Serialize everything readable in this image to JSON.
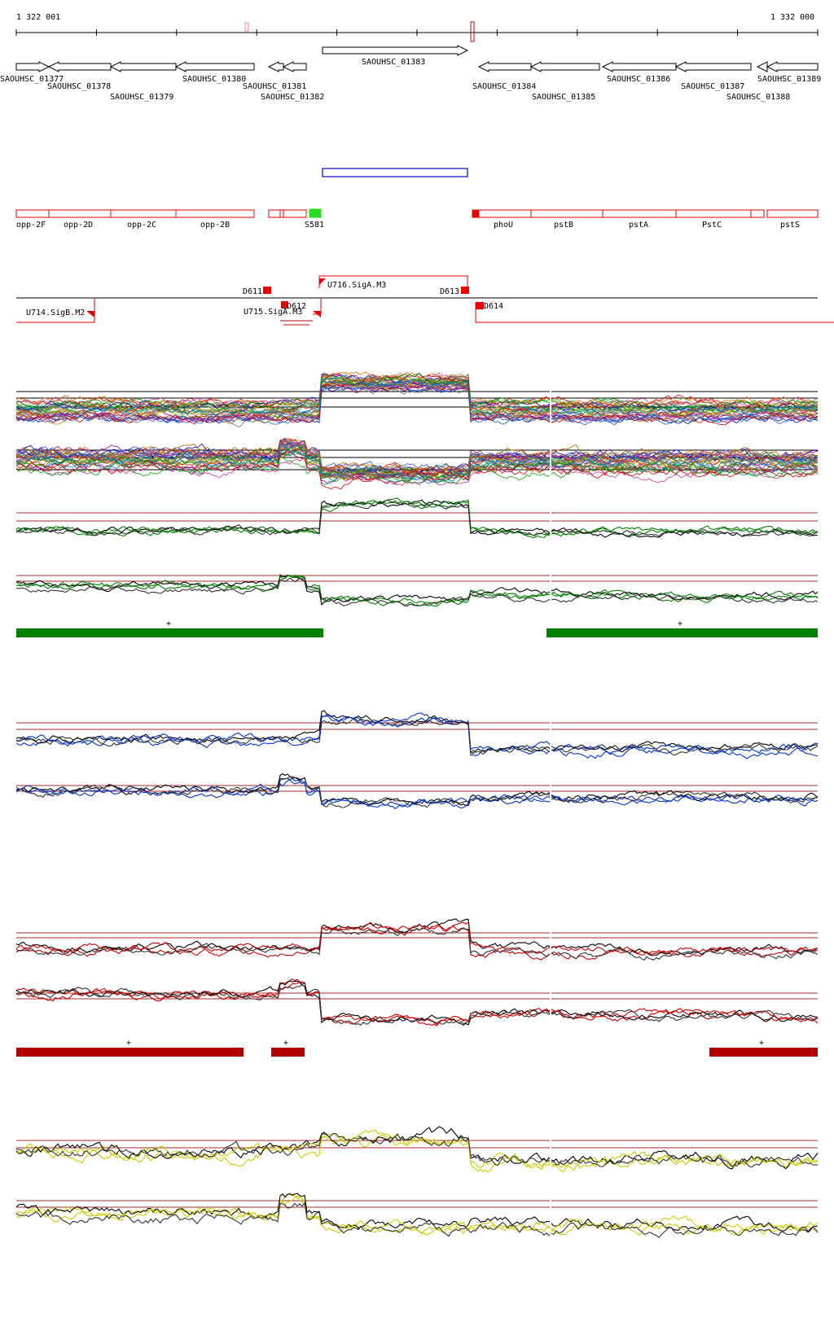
{
  "ruler": {
    "start_label": "1 322 001",
    "end_label": "1 332 000"
  },
  "genes": [
    {
      "label": "SAOUHSC_01377",
      "dir": "right"
    },
    {
      "label": "SAOUHSC_01378",
      "dir": "left"
    },
    {
      "label": "SAOUHSC_01379",
      "dir": "left"
    },
    {
      "label": "SAOUHSC_01380",
      "dir": "left"
    },
    {
      "label": "SAOUHSC_01381",
      "dir": "left"
    },
    {
      "label": "SAOUHSC_01382",
      "dir": "left"
    },
    {
      "label": "SAOUHSC_01383",
      "dir": "right"
    },
    {
      "label": "SAOUHSC_01384",
      "dir": "left"
    },
    {
      "label": "SAOUHSC_01385",
      "dir": "left"
    },
    {
      "label": "SAOUHSC_01386",
      "dir": "left"
    },
    {
      "label": "SAOUHSC_01387",
      "dir": "left"
    },
    {
      "label": "SAOUHSC_01388",
      "dir": "left"
    },
    {
      "label": "SAOUHSC_01389",
      "dir": "left"
    }
  ],
  "annotations": [
    {
      "label": "opp-2F"
    },
    {
      "label": "opp-2D"
    },
    {
      "label": "opp-2C"
    },
    {
      "label": "opp-2B"
    },
    {
      "label": "S581"
    },
    {
      "label": "phoU"
    },
    {
      "label": "pstB"
    },
    {
      "label": "pstA"
    },
    {
      "label": "PstC"
    },
    {
      "label": "pstS"
    }
  ],
  "features": [
    {
      "label": "U714.SigB.M2"
    },
    {
      "label": "D611"
    },
    {
      "label": "D612"
    },
    {
      "label": "U715.SigA.M3"
    },
    {
      "label": "U716.SigA.M3"
    },
    {
      "label": "D613"
    },
    {
      "label": "D614"
    }
  ],
  "segment_marks": [
    "+",
    "+",
    "+",
    "+",
    "+"
  ],
  "colors": {
    "gene_outline": "#000000",
    "annotation_outline": "#dd0000",
    "s581_fill": "#22dd22",
    "transcript_box": "#0000cc",
    "feature_red": "#ee0000",
    "threshold": "#a52a2a",
    "green": "#008000",
    "blue": "#0033cc",
    "red": "#cc0000",
    "yellow": "#cccc00",
    "dark_red_bar": "#b00000"
  }
}
